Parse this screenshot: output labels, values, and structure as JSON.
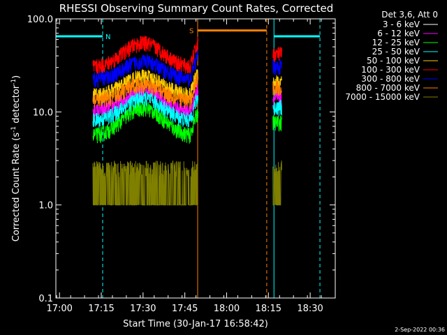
{
  "chart_data": {
    "type": "line",
    "title": "RHESSI Observing Summary Count Rates, Corrected",
    "xlabel": "Start Time (30-Jan-17 16:58:42)",
    "ylabel_main": "Corrected Count Rate (s",
    "ylabel_sup1": "-1",
    "ylabel_mid": " detector",
    "ylabel_sup2": "-1",
    "ylabel_end": ")",
    "y_scale": "log",
    "ylim": [
      0.1,
      100
    ],
    "xlim_minutes": [
      -1.3,
      39.6
    ],
    "x_ticks": [
      {
        "m": 0,
        "label": "17:00"
      },
      {
        "m": 15,
        "label": "17:15"
      },
      {
        "m": 30,
        "label": "17:30"
      },
      {
        "m": 45,
        "label": "17:45"
      },
      {
        "m": 60,
        "label": "18:00"
      },
      {
        "m": 75,
        "label": "18:15"
      },
      {
        "m": 90,
        "label": "18:30"
      }
    ],
    "y_ticks": [
      {
        "v": 0.1,
        "label": "0.1"
      },
      {
        "v": 1,
        "label": "1.0"
      },
      {
        "v": 10,
        "label": "10.0"
      },
      {
        "v": 100,
        "label": "100.0"
      }
    ],
    "legend_title": "Det 3,6, Att 0",
    "series": [
      {
        "name": "3 - 6 keV",
        "color": "#000000",
        "base": 18.0,
        "peak": 28.0
      },
      {
        "name": "6 - 12 keV",
        "color": "#ff00ff",
        "base": 10.0,
        "peak": 17.0
      },
      {
        "name": "12 - 25 keV",
        "color": "#00ff00",
        "base": 5.5,
        "peak": 11.0
      },
      {
        "name": "25 - 50 keV",
        "color": "#00ffff",
        "base": 8.0,
        "peak": 14.0
      },
      {
        "name": "50 - 100 keV",
        "color": "#ffcc00",
        "base": 15.0,
        "peak": 24.0
      },
      {
        "name": "100 - 300 keV",
        "color": "#ff0000",
        "base": 30.0,
        "peak": 55.0
      },
      {
        "name": "300 - 800 keV",
        "color": "#0000ff",
        "base": 22.0,
        "peak": 35.0
      },
      {
        "name": "800 - 7000 keV",
        "color": "#ff8000",
        "base": 13.0,
        "peak": 20.0
      },
      {
        "name": "7000 - 15000 keV",
        "color": "#808000",
        "base": 1.0,
        "peak": 2.0
      }
    ],
    "data_segments": [
      [
        12.0,
        49.8
      ],
      [
        76.6,
        79.8
      ]
    ],
    "saa_bar": {
      "label": "S",
      "start": 49.6,
      "end": 74.4,
      "value": 75,
      "color": "#ff8000"
    },
    "night_bar_1": {
      "label": "N",
      "start": -1.3,
      "end": 15.5,
      "value": 65,
      "color": "#00ffff"
    },
    "night_bar_2": {
      "start": 77.0,
      "end": 93.5,
      "value": 65,
      "color": "#00ffff"
    },
    "vlines": [
      {
        "m": -1.3,
        "color": "#00ffff",
        "style": "solid"
      },
      {
        "m": 15.5,
        "color": "#00ffff",
        "style": "dashed"
      },
      {
        "m": 49.6,
        "color": "#ff8000",
        "style": "solid"
      },
      {
        "m": 74.4,
        "color": "#ff8000",
        "style": "dashed"
      },
      {
        "m": 77.0,
        "color": "#00ffff",
        "style": "solid"
      },
      {
        "m": 93.5,
        "color": "#00ffff",
        "style": "dashed"
      }
    ],
    "timestamp": "2-Sep-2022 00:36"
  }
}
